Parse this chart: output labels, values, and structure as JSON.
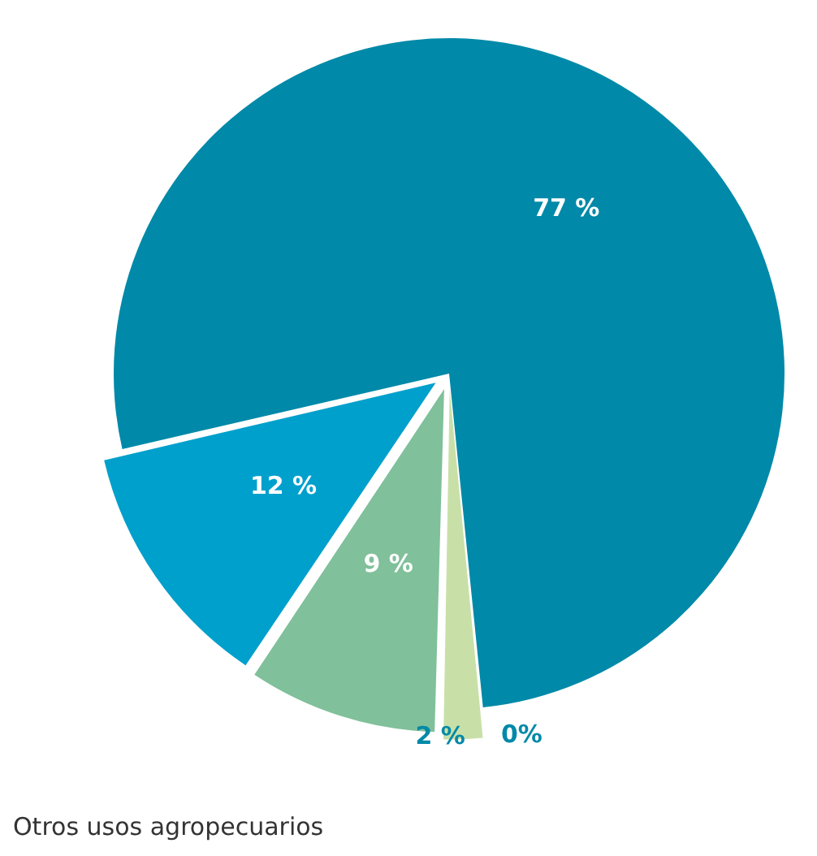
{
  "chart_data": {
    "type": "pie",
    "categories": [
      null,
      null,
      null,
      null,
      null
    ],
    "values": [
      77,
      0,
      2,
      9,
      12
    ],
    "colors": [
      "#0089a8",
      "#eef0a8",
      "#c8e0a8",
      "#80c09a",
      "#00a0cc"
    ],
    "value_labels": [
      "77 %",
      "0%",
      "2 %",
      "9 %",
      "12 %"
    ],
    "annotations": [
      "Otros usos agropecuarios"
    ]
  }
}
